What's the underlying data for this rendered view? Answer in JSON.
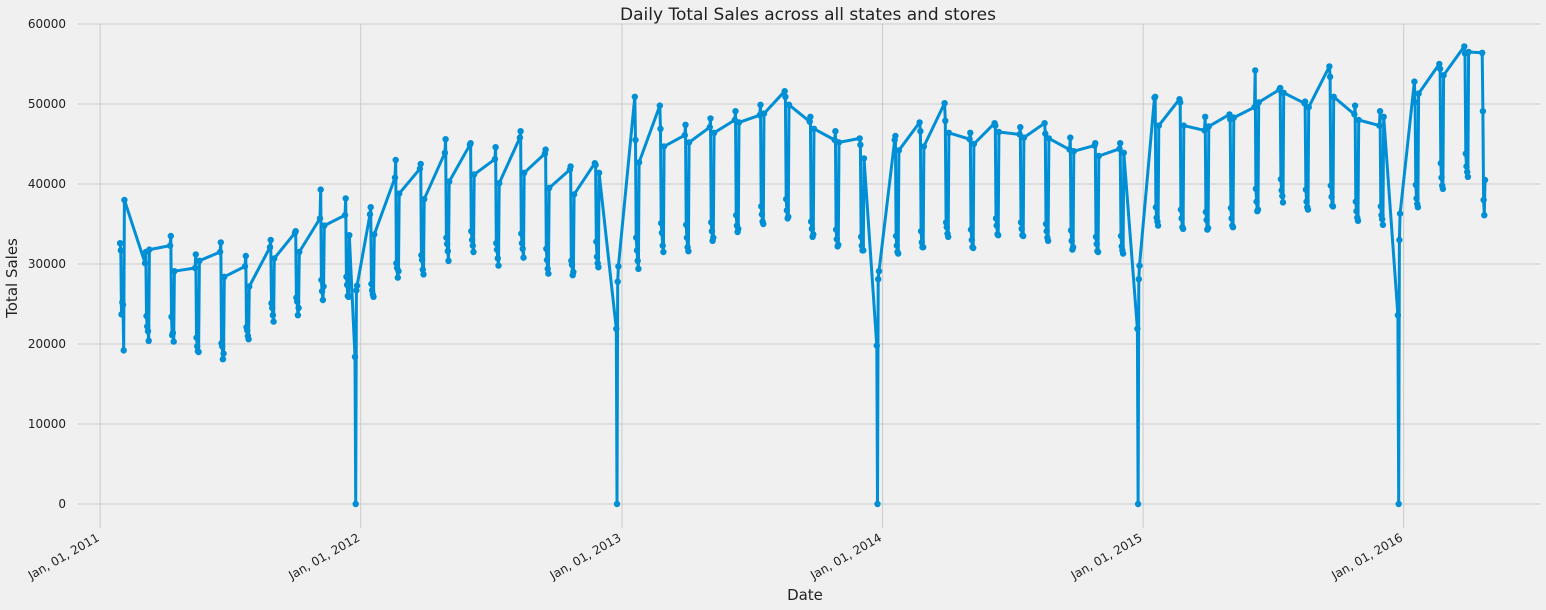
{
  "chart_data": {
    "type": "line",
    "title": "Daily Total Sales across all states and stores",
    "xlabel": "Date",
    "ylabel": "Total Sales",
    "x_range": [
      "2010-12-01",
      "2016-07-10"
    ],
    "ylim": [
      -3000,
      60000
    ],
    "y_ticks": [
      0,
      10000,
      20000,
      30000,
      40000,
      50000,
      60000
    ],
    "x_ticks": [
      {
        "date": "2011-01-01",
        "label": "Jan, 01, 2011"
      },
      {
        "date": "2012-01-01",
        "label": "Jan, 01, 2012"
      },
      {
        "date": "2013-01-01",
        "label": "Jan, 01, 2013"
      },
      {
        "date": "2014-01-01",
        "label": "Jan, 01, 2014"
      },
      {
        "date": "2015-01-01",
        "label": "Jan, 01, 2015"
      },
      {
        "date": "2016-01-01",
        "label": "Jan, 01, 2016"
      }
    ],
    "grid": true,
    "legend": "none",
    "series": [
      {
        "color": "#008fd5",
        "marker": "circle",
        "resolution": "weekly points (Mon–Sun) with yearly closure on Dec 25",
        "x": [
          "2011-01-29",
          "2011-01-30",
          "2011-01-31",
          "2011-02-01",
          "2011-02-02",
          "2011-02-03",
          "2011-02-04",
          "2011-03-05",
          "2011-03-06",
          "2011-03-07",
          "2011-03-08",
          "2011-03-09",
          "2011-03-10",
          "2011-03-11",
          "2011-04-09",
          "2011-04-10",
          "2011-04-11",
          "2011-04-12",
          "2011-04-13",
          "2011-04-14",
          "2011-04-15",
          "2011-05-14",
          "2011-05-15",
          "2011-05-16",
          "2011-05-17",
          "2011-05-18",
          "2011-05-19",
          "2011-05-20",
          "2011-06-18",
          "2011-06-19",
          "2011-06-20",
          "2011-06-21",
          "2011-06-22",
          "2011-06-23",
          "2011-06-24",
          "2011-07-23",
          "2011-07-24",
          "2011-07-25",
          "2011-07-26",
          "2011-07-27",
          "2011-07-28",
          "2011-07-29",
          "2011-08-27",
          "2011-08-28",
          "2011-08-29",
          "2011-08-30",
          "2011-08-31",
          "2011-09-01",
          "2011-09-02",
          "2011-10-01",
          "2011-10-02",
          "2011-10-03",
          "2011-10-04",
          "2011-10-05",
          "2011-10-06",
          "2011-10-07",
          "2011-11-05",
          "2011-11-06",
          "2011-11-07",
          "2011-11-08",
          "2011-11-09",
          "2011-11-10",
          "2011-11-11",
          "2011-12-10",
          "2011-12-11",
          "2011-12-12",
          "2011-12-13",
          "2011-12-14",
          "2011-12-15",
          "2011-12-16",
          "2011-12-24",
          "2011-12-25",
          "2011-12-26",
          "2011-12-27",
          "2012-01-14",
          "2012-01-15",
          "2012-01-16",
          "2012-01-17",
          "2012-01-18",
          "2012-01-19",
          "2012-01-20",
          "2012-02-18",
          "2012-02-19",
          "2012-02-20",
          "2012-02-21",
          "2012-02-22",
          "2012-02-23",
          "2012-02-24",
          "2012-03-24",
          "2012-03-25",
          "2012-03-26",
          "2012-03-27",
          "2012-03-28",
          "2012-03-29",
          "2012-03-30",
          "2012-04-28",
          "2012-04-29",
          "2012-04-30",
          "2012-05-01",
          "2012-05-02",
          "2012-05-03",
          "2012-05-04",
          "2012-06-02",
          "2012-06-03",
          "2012-06-04",
          "2012-06-05",
          "2012-06-06",
          "2012-06-07",
          "2012-06-08",
          "2012-07-07",
          "2012-07-08",
          "2012-07-09",
          "2012-07-10",
          "2012-07-11",
          "2012-07-12",
          "2012-07-13",
          "2012-08-11",
          "2012-08-12",
          "2012-08-13",
          "2012-08-14",
          "2012-08-15",
          "2012-08-16",
          "2012-08-17",
          "2012-09-15",
          "2012-09-16",
          "2012-09-17",
          "2012-09-18",
          "2012-09-19",
          "2012-09-20",
          "2012-09-21",
          "2012-10-20",
          "2012-10-21",
          "2012-10-22",
          "2012-10-23",
          "2012-10-24",
          "2012-10-25",
          "2012-10-26",
          "2012-11-24",
          "2012-11-25",
          "2012-11-26",
          "2012-11-27",
          "2012-11-28",
          "2012-11-29",
          "2012-11-30",
          "2012-12-24",
          "2012-12-25",
          "2012-12-26",
          "2012-12-27",
          "2013-01-19",
          "2013-01-20",
          "2013-01-21",
          "2013-01-22",
          "2013-01-23",
          "2013-01-24",
          "2013-01-25",
          "2013-02-23",
          "2013-02-24",
          "2013-02-25",
          "2013-02-26",
          "2013-02-27",
          "2013-02-28",
          "2013-03-01",
          "2013-03-30",
          "2013-03-31",
          "2013-04-01",
          "2013-04-02",
          "2013-04-03",
          "2013-04-04",
          "2013-04-05",
          "2013-05-04",
          "2013-05-05",
          "2013-05-06",
          "2013-05-07",
          "2013-05-08",
          "2013-05-09",
          "2013-05-10",
          "2013-06-08",
          "2013-06-09",
          "2013-06-10",
          "2013-06-11",
          "2013-06-12",
          "2013-06-13",
          "2013-06-14",
          "2013-07-13",
          "2013-07-14",
          "2013-07-15",
          "2013-07-16",
          "2013-07-17",
          "2013-07-18",
          "2013-07-19",
          "2013-08-17",
          "2013-08-18",
          "2013-08-19",
          "2013-08-20",
          "2013-08-21",
          "2013-08-22",
          "2013-08-23",
          "2013-09-21",
          "2013-09-22",
          "2013-09-23",
          "2013-09-24",
          "2013-09-25",
          "2013-09-26",
          "2013-09-27",
          "2013-10-26",
          "2013-10-27",
          "2013-10-28",
          "2013-10-29",
          "2013-10-30",
          "2013-10-31",
          "2013-11-01",
          "2013-11-30",
          "2013-12-01",
          "2013-12-02",
          "2013-12-03",
          "2013-12-04",
          "2013-12-05",
          "2013-12-06",
          "2013-12-24",
          "2013-12-25",
          "2013-12-26",
          "2013-12-27",
          "2014-01-18",
          "2014-01-19",
          "2014-01-20",
          "2014-01-21",
          "2014-01-22",
          "2014-01-23",
          "2014-01-24",
          "2014-02-22",
          "2014-02-23",
          "2014-02-24",
          "2014-02-25",
          "2014-02-26",
          "2014-02-27",
          "2014-02-28",
          "2014-03-29",
          "2014-03-30",
          "2014-03-31",
          "2014-04-01",
          "2014-04-02",
          "2014-04-03",
          "2014-04-04",
          "2014-05-03",
          "2014-05-04",
          "2014-05-05",
          "2014-05-06",
          "2014-05-07",
          "2014-05-08",
          "2014-05-09",
          "2014-06-07",
          "2014-06-08",
          "2014-06-09",
          "2014-06-10",
          "2014-06-11",
          "2014-06-12",
          "2014-06-13",
          "2014-07-12",
          "2014-07-13",
          "2014-07-14",
          "2014-07-15",
          "2014-07-16",
          "2014-07-17",
          "2014-07-18",
          "2014-08-16",
          "2014-08-17",
          "2014-08-18",
          "2014-08-19",
          "2014-08-20",
          "2014-08-21",
          "2014-08-22",
          "2014-09-20",
          "2014-09-21",
          "2014-09-22",
          "2014-09-23",
          "2014-09-24",
          "2014-09-25",
          "2014-09-26",
          "2014-10-25",
          "2014-10-26",
          "2014-10-27",
          "2014-10-28",
          "2014-10-29",
          "2014-10-30",
          "2014-10-31",
          "2014-11-29",
          "2014-11-30",
          "2014-12-01",
          "2014-12-02",
          "2014-12-03",
          "2014-12-04",
          "2014-12-05",
          "2014-12-24",
          "2014-12-25",
          "2014-12-26",
          "2014-12-27",
          "2015-01-17",
          "2015-01-18",
          "2015-01-19",
          "2015-01-20",
          "2015-01-21",
          "2015-01-22",
          "2015-01-23",
          "2015-02-21",
          "2015-02-22",
          "2015-02-23",
          "2015-02-24",
          "2015-02-25",
          "2015-02-26",
          "2015-02-27",
          "2015-03-28",
          "2015-03-29",
          "2015-03-30",
          "2015-03-31",
          "2015-04-01",
          "2015-04-02",
          "2015-04-03",
          "2015-05-02",
          "2015-05-03",
          "2015-05-04",
          "2015-05-05",
          "2015-05-06",
          "2015-05-07",
          "2015-05-08",
          "2015-06-06",
          "2015-06-07",
          "2015-06-08",
          "2015-06-09",
          "2015-06-10",
          "2015-06-11",
          "2015-06-12",
          "2015-07-11",
          "2015-07-12",
          "2015-07-13",
          "2015-07-14",
          "2015-07-15",
          "2015-07-16",
          "2015-07-17",
          "2015-08-15",
          "2015-08-16",
          "2015-08-17",
          "2015-08-18",
          "2015-08-19",
          "2015-08-20",
          "2015-08-21",
          "2015-09-19",
          "2015-09-20",
          "2015-09-21",
          "2015-09-22",
          "2015-09-23",
          "2015-09-24",
          "2015-09-25",
          "2015-10-24",
          "2015-10-25",
          "2015-10-26",
          "2015-10-27",
          "2015-10-28",
          "2015-10-29",
          "2015-10-30",
          "2015-11-28",
          "2015-11-29",
          "2015-11-30",
          "2015-12-01",
          "2015-12-02",
          "2015-12-03",
          "2015-12-04",
          "2015-12-24",
          "2015-12-25",
          "2015-12-26",
          "2015-12-27",
          "2016-01-16",
          "2016-01-17",
          "2016-01-18",
          "2016-01-19",
          "2016-01-20",
          "2016-01-21",
          "2016-01-22",
          "2016-02-20",
          "2016-02-21",
          "2016-02-22",
          "2016-02-23",
          "2016-02-24",
          "2016-02-25",
          "2016-02-26",
          "2016-03-26",
          "2016-03-27",
          "2016-03-28",
          "2016-03-29",
          "2016-03-30",
          "2016-03-31",
          "2016-04-01",
          "2016-04-20",
          "2016-04-21",
          "2016-04-22",
          "2016-04-23",
          "2016-04-24"
        ],
        "y": [
          32600,
          31700,
          23700,
          25200,
          24900,
          19200,
          38000,
          30100,
          31500,
          23500,
          22200,
          21600,
          20400,
          31800,
          32300,
          33500,
          23400,
          21100,
          21400,
          20300,
          29100,
          29500,
          31200,
          20800,
          19700,
          19100,
          19000,
          30400,
          31500,
          32700,
          20100,
          19700,
          18100,
          18800,
          28400,
          29700,
          31000,
          22100,
          21700,
          21000,
          20600,
          27200,
          32100,
          33000,
          25100,
          24500,
          23600,
          22800,
          30700,
          33900,
          34100,
          25800,
          25300,
          23600,
          24500,
          31500,
          35700,
          39300,
          28000,
          26600,
          25500,
          27200,
          34800,
          36100,
          38200,
          28400,
          27400,
          26000,
          25900,
          33600,
          18400,
          0,
          26700,
          27300,
          36200,
          37100,
          27500,
          26700,
          26200,
          25900,
          33700,
          40800,
          43000,
          30100,
          29500,
          28300,
          29100,
          38800,
          41900,
          42500,
          31100,
          30500,
          29300,
          28700,
          38100,
          43900,
          45600,
          33300,
          32500,
          31600,
          30400,
          40300,
          44900,
          45100,
          34100,
          33000,
          32300,
          31500,
          41200,
          43100,
          44600,
          32600,
          31800,
          30700,
          29800,
          40100,
          45800,
          46600,
          33800,
          32600,
          31900,
          30800,
          41400,
          43800,
          44300,
          31900,
          30500,
          29400,
          28800,
          39500,
          41800,
          42200,
          30400,
          29900,
          28600,
          29000,
          38700,
          42600,
          42400,
          32800,
          30900,
          30100,
          29600,
          41400,
          21900,
          0,
          27800,
          29700,
          50900,
          45500,
          33300,
          31700,
          30400,
          29400,
          42700,
          49800,
          46900,
          35100,
          33900,
          32300,
          31500,
          44700,
          46100,
          47400,
          34900,
          33300,
          32100,
          31600,
          45200,
          47100,
          48200,
          35200,
          34100,
          32900,
          33300,
          46400,
          48000,
          49100,
          36100,
          34800,
          34000,
          34400,
          47700,
          48600,
          49900,
          37200,
          36200,
          35300,
          35000,
          48800,
          51600,
          50900,
          38100,
          36700,
          35700,
          35900,
          49900,
          47800,
          48400,
          35300,
          34400,
          33400,
          33700,
          46900,
          45500,
          46600,
          34300,
          33100,
          32200,
          32400,
          45200,
          45700,
          44900,
          33400,
          32300,
          31700,
          31700,
          43200,
          19800,
          0,
          28100,
          29100,
          45500,
          46000,
          33500,
          32300,
          31500,
          31300,
          44200,
          47700,
          46600,
          34100,
          32700,
          32100,
          32100,
          44700,
          50100,
          47900,
          35200,
          34600,
          33800,
          33400,
          46400,
          45600,
          46400,
          34300,
          33000,
          32100,
          32000,
          45000,
          47600,
          47300,
          35700,
          34800,
          33700,
          33600,
          46500,
          46200,
          47100,
          35200,
          34400,
          33600,
          33500,
          45800,
          47600,
          46300,
          35000,
          34100,
          33300,
          32900,
          45700,
          44300,
          45800,
          34200,
          32900,
          31800,
          32100,
          44100,
          44800,
          45100,
          33400,
          32500,
          31600,
          31500,
          43500,
          44400,
          45100,
          33500,
          32200,
          31700,
          31300,
          43900,
          21900,
          0,
          28100,
          29800,
          50800,
          50900,
          37100,
          35800,
          35300,
          34800,
          47300,
          50600,
          50200,
          36800,
          35700,
          34600,
          34400,
          47300,
          46700,
          48400,
          36500,
          35500,
          34300,
          34500,
          47200,
          48700,
          48100,
          37000,
          35700,
          34800,
          34600,
          48300,
          49600,
          54200,
          39400,
          37800,
          36600,
          36800,
          50200,
          51800,
          52000,
          40600,
          39200,
          38500,
          37700,
          51400,
          50100,
          50300,
          39300,
          37800,
          37100,
          36800,
          49600,
          54700,
          53400,
          39800,
          38400,
          37300,
          37200,
          50900,
          48700,
          49800,
          37800,
          36600,
          35800,
          35400,
          48000,
          47300,
          49100,
          37200,
          36100,
          35600,
          34900,
          48400,
          23600,
          0,
          33000,
          36300,
          52800,
          50200,
          39900,
          38200,
          37500,
          37100,
          51300,
          55000,
          54400,
          42600,
          40800,
          39800,
          39400,
          53600,
          57200,
          56300,
          43800,
          42200,
          41500,
          40900,
          56500,
          56400,
          49100,
          38000,
          36100,
          40500
        ]
      }
    ]
  }
}
